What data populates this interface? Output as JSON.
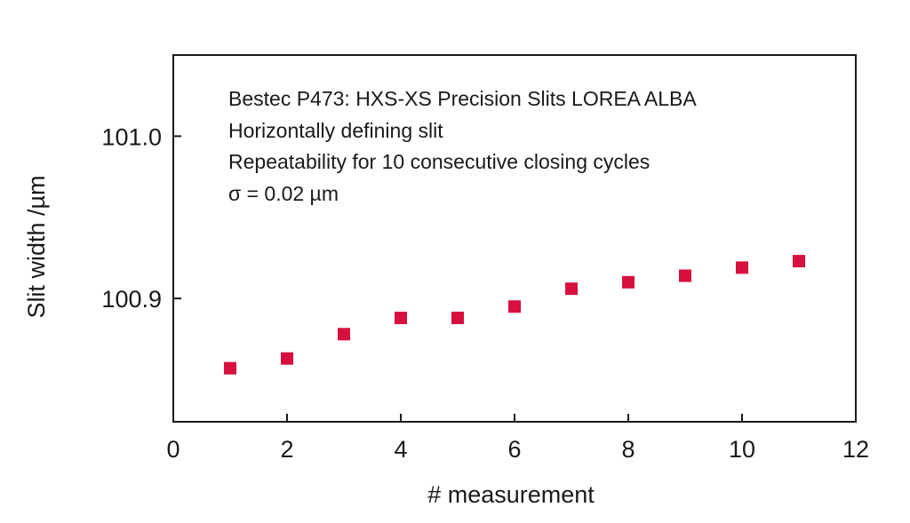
{
  "chart_data": {
    "type": "scatter",
    "xlabel": "# measurement",
    "ylabel": "Slit width /µm",
    "xlim": [
      0,
      12
    ],
    "ylim": [
      100.824,
      101.05
    ],
    "x_ticks": [
      0,
      2,
      4,
      6,
      8,
      10,
      12
    ],
    "y_ticks": [
      100.9,
      101.0
    ],
    "y_tick_labels": [
      "100.9",
      "101.0"
    ],
    "grid": false,
    "marker": "square",
    "marker_color": "#d7103f",
    "annotation": [
      "Bestec P473: HXS-XS Precision Slits LOREA ALBA",
      "Horizontally defining slit",
      "Repeatability for 10 consecutive closing cycles",
      "σ = 0.02 µm"
    ],
    "series": [
      {
        "x": [
          1,
          2,
          3,
          4,
          5,
          6,
          7,
          8,
          9,
          10,
          11
        ],
        "y": [
          100.857,
          100.863,
          100.878,
          100.888,
          100.888,
          100.895,
          100.906,
          100.91,
          100.914,
          100.919,
          100.923
        ]
      }
    ]
  }
}
